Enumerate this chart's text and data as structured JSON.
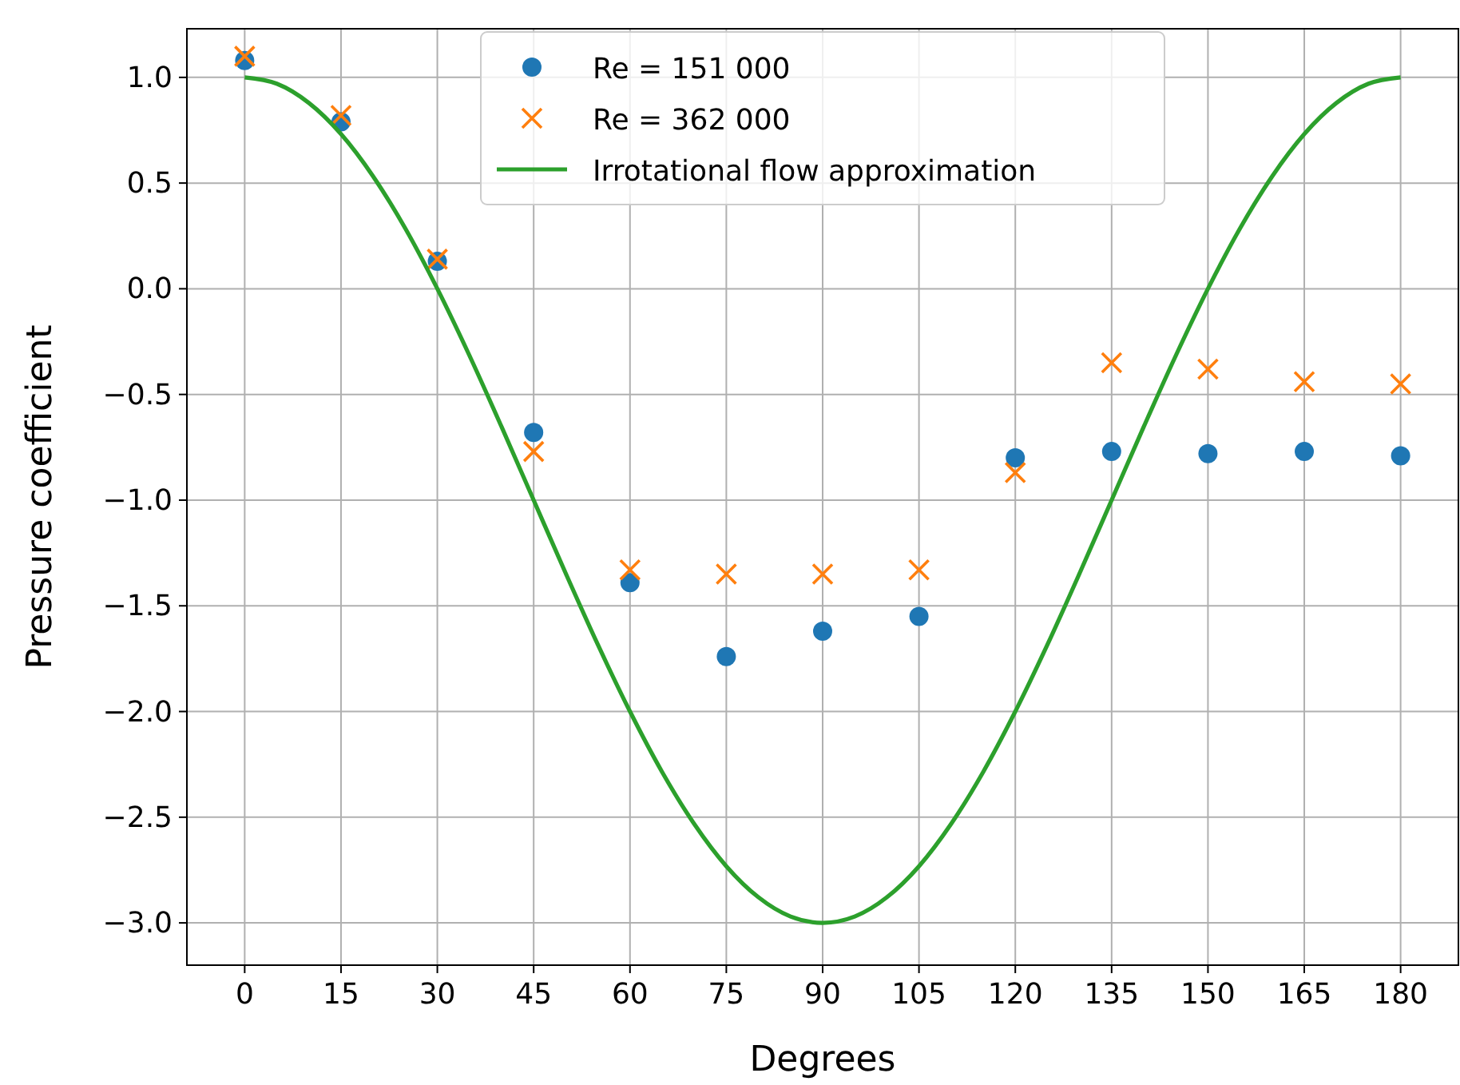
{
  "chart_data": {
    "type": "scatter",
    "xlabel": "Degrees",
    "ylabel": "Pressure coefficient",
    "x": [
      0,
      15,
      30,
      45,
      60,
      75,
      90,
      105,
      120,
      135,
      150,
      165,
      180
    ],
    "series": [
      {
        "name": "Re = 151 000",
        "color": "#1f77b4",
        "marker": "circle",
        "values": [
          1.08,
          0.79,
          0.13,
          -0.68,
          -1.39,
          -1.74,
          -1.62,
          -1.55,
          -0.8,
          -0.77,
          -0.78,
          -0.77,
          -0.79
        ]
      },
      {
        "name": "Re = 362 000",
        "color": "#ff7f0e",
        "marker": "cross",
        "values": [
          1.1,
          0.82,
          0.14,
          -0.77,
          -1.33,
          -1.35,
          -1.35,
          -1.33,
          -0.87,
          -0.35,
          -0.38,
          -0.44,
          -0.45
        ]
      },
      {
        "name": "Irrotational flow approximation",
        "type": "line",
        "color": "#2ca02c",
        "marker": "none",
        "line_style": "solid",
        "x": [
          0,
          5,
          10,
          15,
          20,
          25,
          30,
          35,
          40,
          45,
          50,
          55,
          60,
          65,
          70,
          75,
          80,
          85,
          90,
          95,
          100,
          105,
          110,
          115,
          120,
          125,
          130,
          135,
          140,
          145,
          150,
          155,
          160,
          165,
          170,
          175,
          180
        ],
        "values": [
          1,
          0.97,
          0.879,
          0.732,
          0.532,
          0.286,
          0,
          -0.316,
          -0.653,
          -1,
          -1.347,
          -1.684,
          -2,
          -2.286,
          -2.532,
          -2.732,
          -2.879,
          -2.97,
          -3,
          -2.97,
          -2.879,
          -2.732,
          -2.532,
          -2.286,
          -2,
          -1.684,
          -1.347,
          -1,
          -0.653,
          -0.316,
          0,
          0.286,
          0.532,
          0.732,
          0.879,
          0.97,
          1
        ]
      }
    ],
    "xlim": [
      -9,
      189
    ],
    "xticks": [
      0,
      15,
      30,
      45,
      60,
      75,
      90,
      105,
      120,
      135,
      150,
      165,
      180
    ],
    "ylim": [
      -3.2,
      1.23
    ],
    "yticks": [
      {
        "value": -3,
        "label": "−3.0"
      },
      {
        "value": -2.5,
        "label": "−2.5"
      },
      {
        "value": -2,
        "label": "−2.0"
      },
      {
        "value": -1.5,
        "label": "−1.5"
      },
      {
        "value": -1,
        "label": "−1.0"
      },
      {
        "value": -0.5,
        "label": "−0.5"
      },
      {
        "value": 0,
        "label": "0.0"
      },
      {
        "value": 0.5,
        "label": "0.5"
      },
      {
        "value": 1,
        "label": "1.0"
      }
    ],
    "grid": true,
    "legend": "top"
  }
}
